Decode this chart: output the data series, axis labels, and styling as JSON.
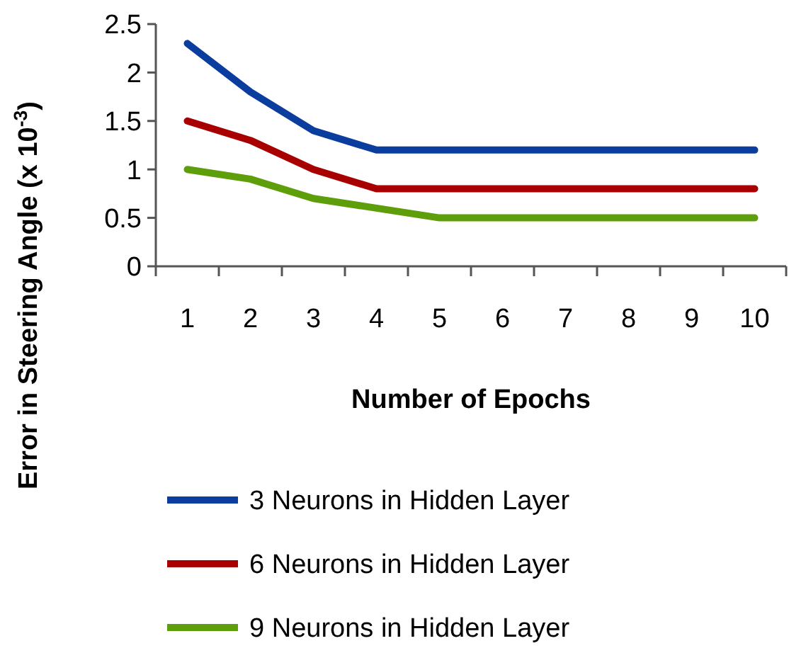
{
  "chart_data": {
    "type": "line",
    "xlabel": "Number of Epochs",
    "ylabel": "Error in Steering Angle (x 10$^{-3}$)",
    "categories": [
      "1",
      "2",
      "3",
      "4",
      "5",
      "6",
      "7",
      "8",
      "9",
      "10"
    ],
    "series": [
      {
        "name": "3 Neurons in Hidden Layer",
        "color": "#0a3d9e",
        "values": [
          2.3,
          1.8,
          1.4,
          1.2,
          1.2,
          1.2,
          1.2,
          1.2,
          1.2,
          1.2
        ]
      },
      {
        "name": "6 Neurons in Hidden Layer",
        "color": "#a80000",
        "values": [
          1.5,
          1.3,
          1.0,
          0.8,
          0.8,
          0.8,
          0.8,
          0.8,
          0.8,
          0.8
        ]
      },
      {
        "name": "9 Neurons in Hidden Layer",
        "color": "#5e9e0a",
        "values": [
          1.0,
          0.9,
          0.7,
          0.6,
          0.5,
          0.5,
          0.5,
          0.5,
          0.5,
          0.5
        ]
      }
    ],
    "ylim": [
      0,
      2.5
    ],
    "yticks": [
      0,
      0.5,
      1,
      1.5,
      2,
      2.5
    ],
    "grid": false,
    "legend": "bottom",
    "marker": "none",
    "line_style": "solid"
  }
}
